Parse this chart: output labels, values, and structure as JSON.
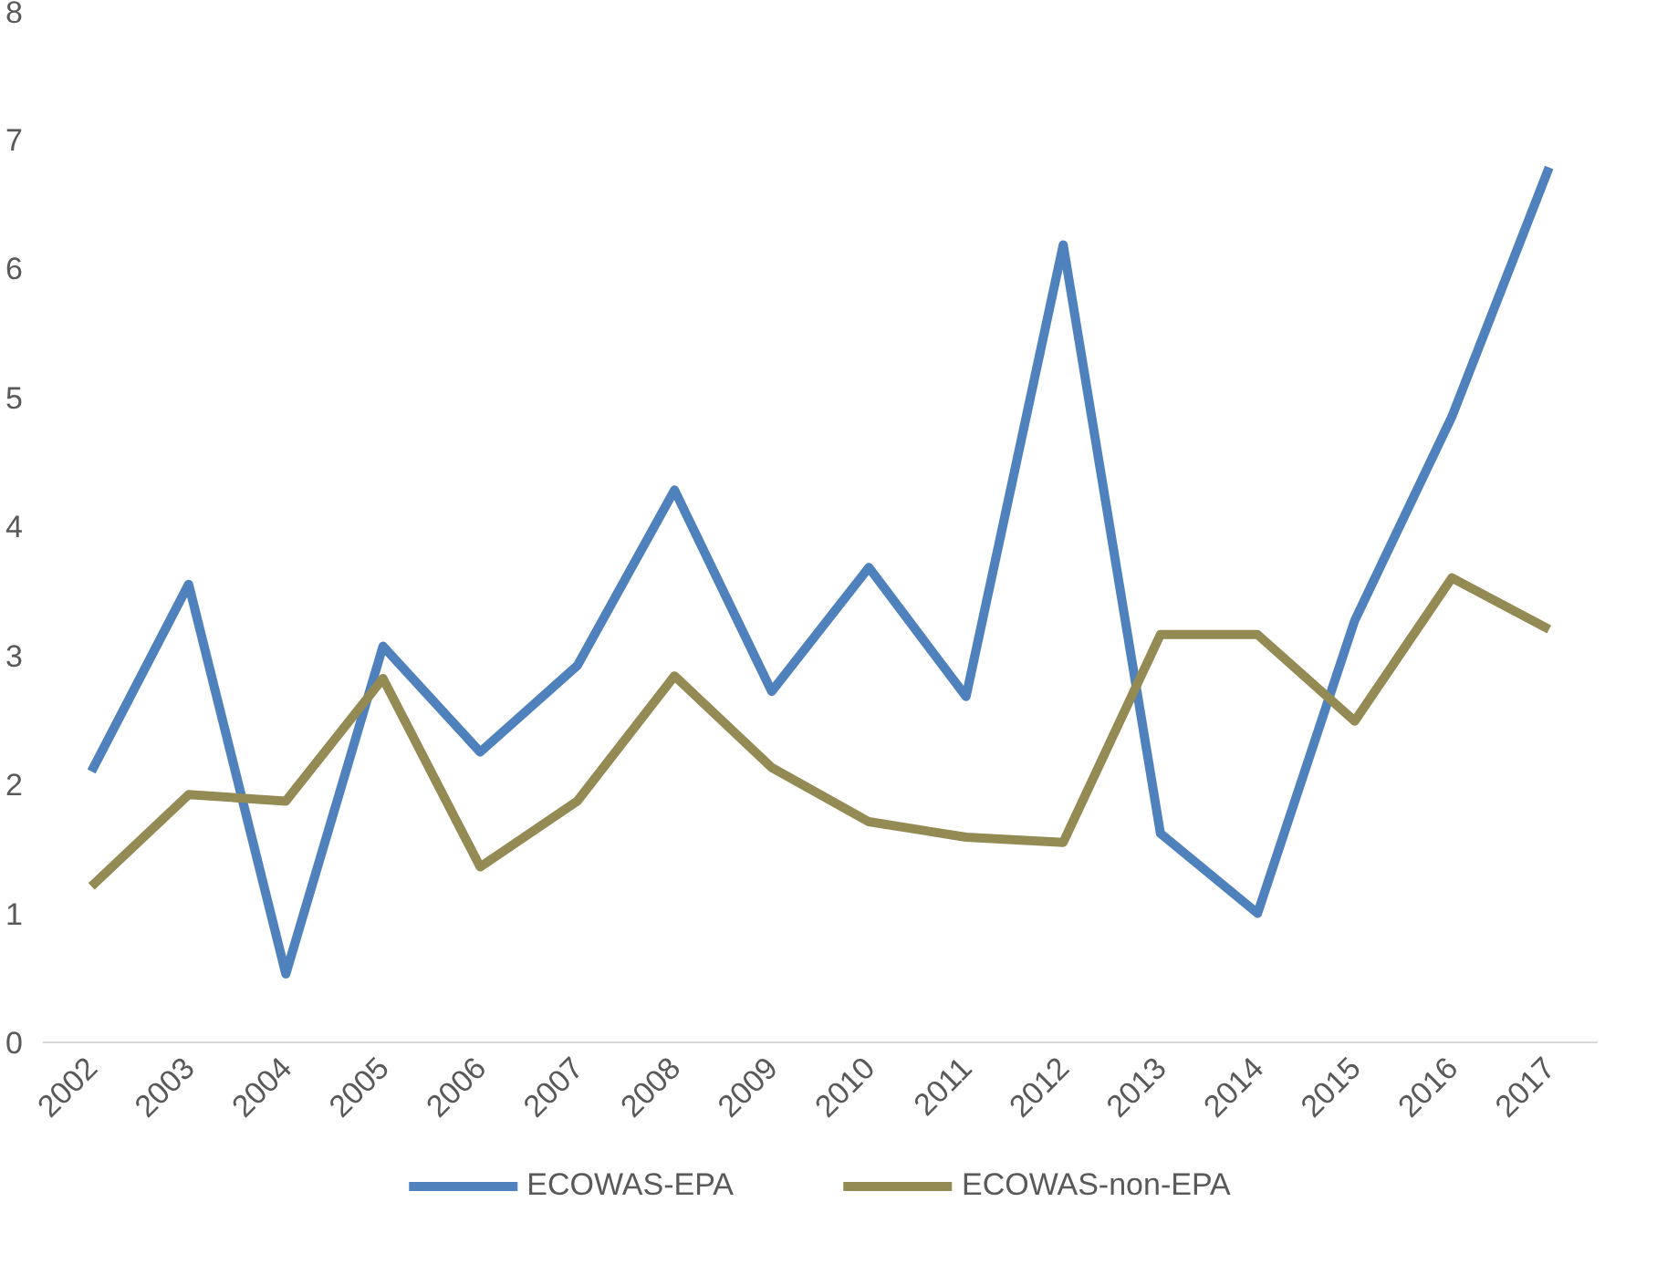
{
  "chart_data": {
    "type": "line",
    "categories": [
      "2002",
      "2003",
      "2004",
      "2005",
      "2006",
      "2007",
      "2008",
      "2009",
      "2010",
      "2011",
      "2012",
      "2013",
      "2014",
      "2015",
      "2016",
      "2017"
    ],
    "series": [
      {
        "name": "ECOWAS-EPA",
        "color": "#4f81bd",
        "values": [
          2.1,
          3.55,
          0.53,
          3.07,
          2.25,
          2.92,
          4.28,
          2.72,
          3.68,
          2.68,
          6.18,
          1.62,
          1.0,
          3.27,
          4.85,
          6.78
        ]
      },
      {
        "name": "ECOWAS-non-EPA",
        "color": "#948a54",
        "values": [
          1.21,
          1.92,
          1.87,
          2.82,
          1.36,
          1.87,
          2.84,
          2.13,
          1.71,
          1.59,
          1.55,
          3.16,
          3.16,
          2.49,
          3.6,
          3.2
        ]
      }
    ],
    "ylim": [
      0,
      8
    ],
    "yticks": [
      0,
      1,
      2,
      3,
      4,
      5,
      6,
      7,
      8
    ],
    "grid": false,
    "legend": "bottom",
    "marker": "none",
    "line_style": "solid"
  }
}
